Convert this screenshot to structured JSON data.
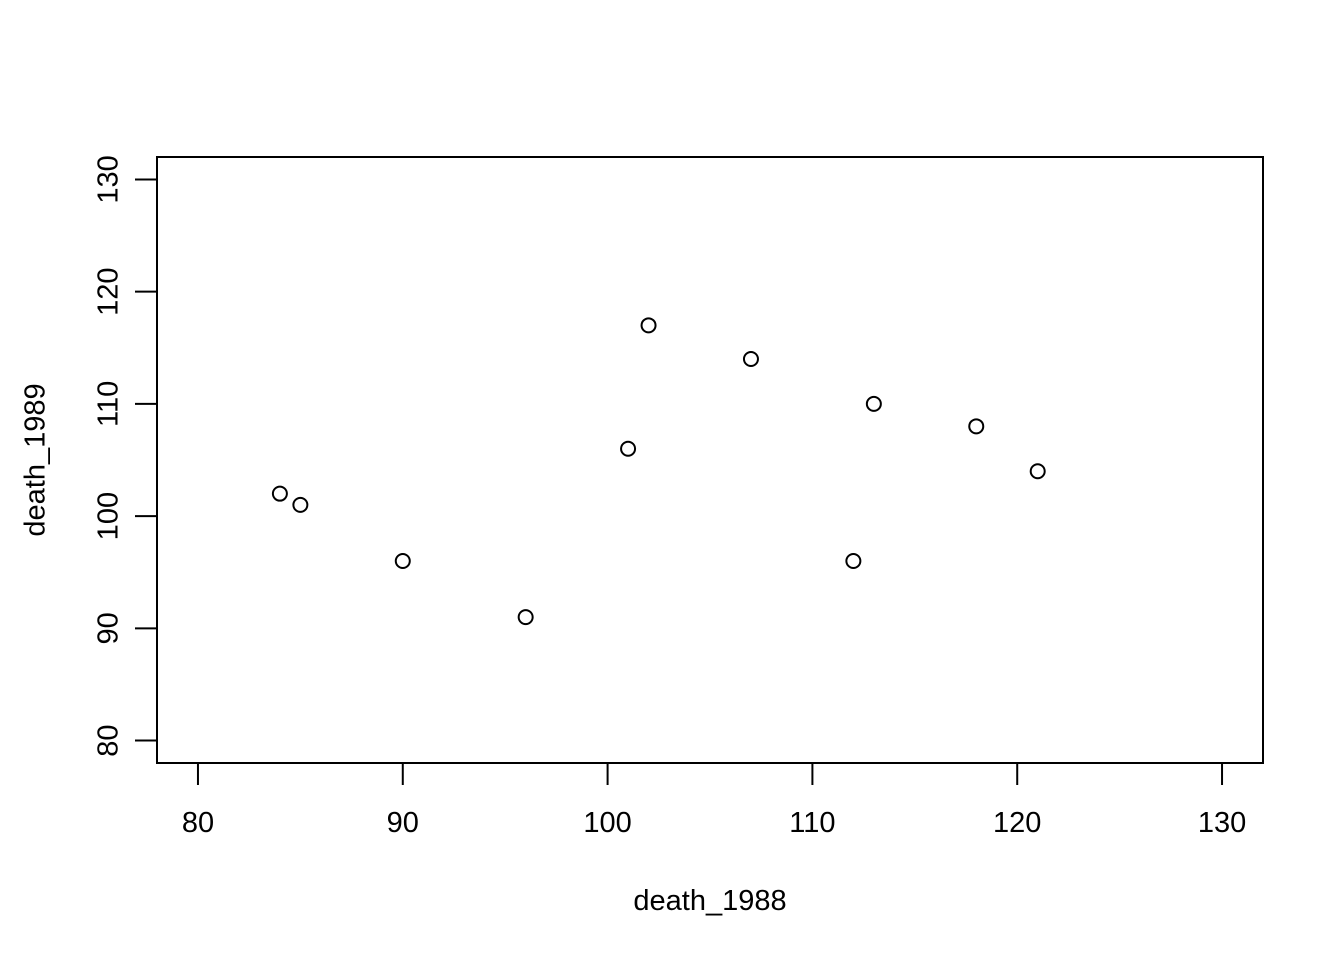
{
  "chart_data": {
    "type": "scatter",
    "title": "",
    "xlabel": "death_1988",
    "ylabel": "death_1989",
    "xlim": [
      78,
      132
    ],
    "ylim": [
      78,
      132
    ],
    "x_ticks": [
      80,
      90,
      100,
      110,
      120,
      130
    ],
    "y_ticks": [
      80,
      90,
      100,
      110,
      120,
      130
    ],
    "x_tick_labels": [
      "80",
      "90",
      "100",
      "110",
      "120",
      "130"
    ],
    "y_tick_labels": [
      "80",
      "90",
      "100",
      "110",
      "120",
      "130"
    ],
    "grid": false,
    "marker": "open-circle",
    "points": [
      {
        "x": 84,
        "y": 102
      },
      {
        "x": 85,
        "y": 101
      },
      {
        "x": 90,
        "y": 96
      },
      {
        "x": 96,
        "y": 91
      },
      {
        "x": 101,
        "y": 106
      },
      {
        "x": 102,
        "y": 117
      },
      {
        "x": 107,
        "y": 114
      },
      {
        "x": 112,
        "y": 96
      },
      {
        "x": 113,
        "y": 110
      },
      {
        "x": 118,
        "y": 108
      },
      {
        "x": 121,
        "y": 104
      }
    ]
  }
}
